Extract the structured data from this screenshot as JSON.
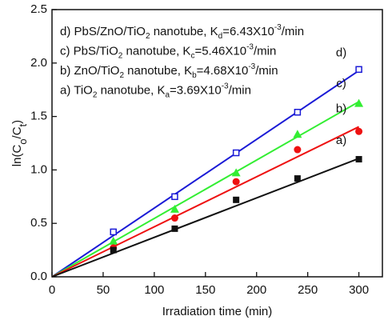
{
  "chart_data": {
    "type": "scatter",
    "x_label": "Irradiation time (min)",
    "y_label": [
      {
        "text": "ln(C"
      },
      {
        "text": "o",
        "shift": "sub"
      },
      {
        "text": "/C"
      },
      {
        "text": "t",
        "shift": "sub"
      },
      {
        "text": ")"
      }
    ],
    "x": [
      60,
      120,
      180,
      240,
      300
    ],
    "fit_x": [
      0,
      300
    ],
    "series": [
      {
        "tag": "d)",
        "marker": "open-square",
        "color": "#1a1ad6",
        "label": [
          {
            "text": "d) PbS/ZnO/TiO"
          },
          {
            "text": "2",
            "shift": "sub"
          },
          {
            "text": " nanotube,  K"
          },
          {
            "text": "d",
            "shift": "sub"
          },
          {
            "text": "=6.43X10"
          },
          {
            "text": "-3",
            "shift": "super"
          },
          {
            "text": "/min"
          }
        ],
        "values": [
          0.42,
          0.75,
          1.16,
          1.54,
          1.94
        ],
        "fit_values": [
          0,
          1.929
        ]
      },
      {
        "tag": "c)",
        "marker": "triangle",
        "color": "#33ee33",
        "label": [
          {
            "text": "c) PbS/TiO"
          },
          {
            "text": "2",
            "shift": "sub"
          },
          {
            "text": " nanotube,  K"
          },
          {
            "text": "c",
            "shift": "sub"
          },
          {
            "text": "=5.46X10"
          },
          {
            "text": "-3",
            "shift": "super"
          },
          {
            "text": "/min"
          }
        ],
        "values": [
          0.33,
          0.63,
          0.97,
          1.33,
          1.62
        ],
        "fit_values": [
          0,
          1.638
        ]
      },
      {
        "tag": "b)",
        "marker": "circle",
        "color": "#ee1111",
        "label": [
          {
            "text": "b) ZnO/TiO"
          },
          {
            "text": "2",
            "shift": "sub"
          },
          {
            "text": " nanotube,  K"
          },
          {
            "text": "b",
            "shift": "sub"
          },
          {
            "text": "=4.68X10"
          },
          {
            "text": "-3",
            "shift": "super"
          },
          {
            "text": "/min"
          }
        ],
        "values": [
          0.27,
          0.55,
          0.89,
          1.19,
          1.36
        ],
        "fit_values": [
          0,
          1.404
        ]
      },
      {
        "tag": "a)",
        "marker": "square",
        "color": "#111111",
        "label": [
          {
            "text": "a) TiO"
          },
          {
            "text": "2",
            "shift": "sub"
          },
          {
            "text": " nanotube,  K"
          },
          {
            "text": "a",
            "shift": "sub"
          },
          {
            "text": "=3.69X10"
          },
          {
            "text": "-3",
            "shift": "super"
          },
          {
            "text": "/min"
          }
        ],
        "values": [
          0.25,
          0.45,
          0.72,
          0.92,
          1.1
        ],
        "fit_values": [
          0,
          1.107
        ]
      }
    ],
    "xlim": [
      0,
      323
    ],
    "xticks": [
      0,
      50,
      100,
      150,
      200,
      250,
      300
    ],
    "ylim": [
      0,
      2.5
    ],
    "yticks": [
      {
        "value": 0,
        "label": "0.0"
      },
      0.5,
      {
        "value": 1,
        "label": "1.0"
      },
      1.5,
      {
        "value": 2,
        "label": "2.0"
      },
      2.5
    ]
  }
}
